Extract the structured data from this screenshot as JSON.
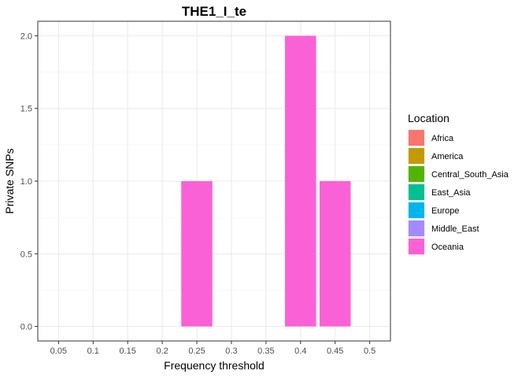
{
  "chart_data": {
    "type": "bar",
    "title": "THE1_I_te",
    "xlabel": "Frequency threshold",
    "ylabel": "Private SNPs",
    "categories": [
      "0.05",
      "0.1",
      "0.15",
      "0.2",
      "0.25",
      "0.3",
      "0.35",
      "0.4",
      "0.45",
      "0.5"
    ],
    "ylim": [
      -0.1,
      2.1
    ],
    "yticks": [
      0.0,
      0.5,
      1.0,
      1.5,
      2.0
    ],
    "ytick_labels": [
      "0.0",
      "0.5",
      "1.0",
      "1.5",
      "2.0"
    ],
    "grid": true,
    "legend_position": "right",
    "legend_title": "Location",
    "legend": [
      {
        "name": "Africa",
        "color": "#F8766D"
      },
      {
        "name": "America",
        "color": "#C49A00"
      },
      {
        "name": "Central_South_Asia",
        "color": "#53B400"
      },
      {
        "name": "East_Asia",
        "color": "#00C094"
      },
      {
        "name": "Europe",
        "color": "#00B6EB"
      },
      {
        "name": "Middle_East",
        "color": "#A58AFF"
      },
      {
        "name": "Oceania",
        "color": "#FB61D7"
      }
    ],
    "series": [
      {
        "name": "Oceania",
        "color": "#FB61D7",
        "x": [
          "0.25",
          "0.4",
          "0.45"
        ],
        "values": [
          1,
          2,
          1
        ]
      }
    ]
  }
}
